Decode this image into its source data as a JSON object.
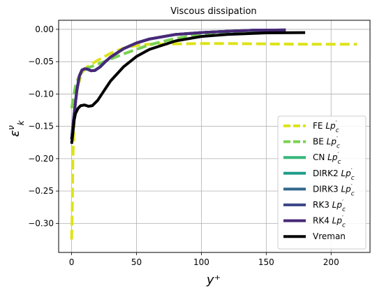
{
  "chart_data": {
    "type": "line",
    "title": "Viscous dissipation",
    "xlabel": "y⁺",
    "ylabel": "ε",
    "ylabel_sup": "ν",
    "ylabel_sub": "k",
    "xlim": [
      -10,
      230
    ],
    "ylim": [
      -0.345,
      0.014
    ],
    "x_ticks": [
      0,
      50,
      100,
      150,
      200
    ],
    "y_ticks": [
      0.0,
      -0.05,
      -0.1,
      -0.15,
      -0.2,
      -0.25,
      -0.3
    ],
    "x_tick_labels": [
      "0",
      "50",
      "100",
      "150",
      "200"
    ],
    "y_tick_labels": [
      "0.00",
      "−0.05",
      "−0.10",
      "−0.15",
      "−0.20",
      "−0.25",
      "−0.30"
    ],
    "grid": true,
    "legend_position": "lower-right",
    "series": [
      {
        "name": "FE Lp′c",
        "label_main": "FE ",
        "label_italic": "Lp",
        "label_prime": "′",
        "label_sub": "c",
        "color": "#dde318",
        "style": "dashed",
        "x": [
          0,
          0.5,
          1,
          2,
          3,
          5,
          8,
          12,
          20,
          30,
          40,
          50,
          60,
          80,
          100,
          120,
          150,
          180,
          220
        ],
        "y": [
          -0.325,
          -0.28,
          -0.2,
          -0.14,
          -0.11,
          -0.085,
          -0.067,
          -0.058,
          -0.048,
          -0.037,
          -0.029,
          -0.025,
          -0.023,
          -0.0225,
          -0.022,
          -0.022,
          -0.0225,
          -0.023,
          -0.023
        ]
      },
      {
        "name": "BE Lp′c",
        "label_main": "BE ",
        "label_italic": "Lp",
        "label_prime": "′",
        "label_sub": "c",
        "color": "#7ad151",
        "style": "dashed",
        "x": [
          0,
          1,
          2,
          3,
          5,
          8,
          12,
          16,
          20,
          30,
          40,
          50,
          60,
          80,
          100,
          120,
          140,
          160
        ],
        "y": [
          -0.122,
          -0.11,
          -0.098,
          -0.088,
          -0.076,
          -0.066,
          -0.06,
          -0.057,
          -0.054,
          -0.046,
          -0.038,
          -0.031,
          -0.024,
          -0.014,
          -0.008,
          -0.005,
          -0.003,
          -0.002
        ]
      },
      {
        "name": "CN Lp′c",
        "label_main": "CN ",
        "label_italic": "Lp",
        "label_prime": "′",
        "label_sub": "c",
        "color": "#35b779",
        "style": "solid",
        "x": [
          0,
          1,
          2,
          4,
          6,
          8,
          10,
          12,
          15,
          18,
          22,
          26,
          30,
          40,
          50,
          60,
          80,
          100,
          120,
          140,
          165
        ],
        "y": [
          -0.17,
          -0.15,
          -0.13,
          -0.095,
          -0.072,
          -0.063,
          -0.061,
          -0.0615,
          -0.064,
          -0.0635,
          -0.058,
          -0.05,
          -0.043,
          -0.03,
          -0.021,
          -0.015,
          -0.008,
          -0.005,
          -0.003,
          -0.0015,
          -0.001
        ]
      },
      {
        "name": "DIRK2 Lp′c",
        "label_main": "DIRK2 ",
        "label_italic": "Lp",
        "label_prime": "′",
        "label_sub": "c",
        "color": "#1f9e89",
        "style": "solid",
        "x": [
          0,
          1,
          2,
          4,
          6,
          8,
          10,
          12,
          15,
          18,
          22,
          26,
          30,
          40,
          50,
          60,
          80,
          100,
          120,
          140,
          165
        ],
        "y": [
          -0.17,
          -0.15,
          -0.13,
          -0.095,
          -0.072,
          -0.063,
          -0.061,
          -0.0615,
          -0.064,
          -0.0635,
          -0.058,
          -0.05,
          -0.043,
          -0.03,
          -0.021,
          -0.015,
          -0.008,
          -0.005,
          -0.003,
          -0.0015,
          -0.001
        ]
      },
      {
        "name": "DIRK3 Lp′c",
        "label_main": "DIRK3 ",
        "label_italic": "Lp",
        "label_prime": "′",
        "label_sub": "c",
        "color": "#31688e",
        "style": "solid",
        "x": [
          0,
          1,
          2,
          4,
          6,
          8,
          10,
          12,
          15,
          18,
          22,
          26,
          30,
          40,
          50,
          60,
          80,
          100,
          120,
          140,
          165
        ],
        "y": [
          -0.17,
          -0.15,
          -0.13,
          -0.095,
          -0.072,
          -0.063,
          -0.061,
          -0.0615,
          -0.064,
          -0.0635,
          -0.058,
          -0.05,
          -0.043,
          -0.03,
          -0.021,
          -0.015,
          -0.008,
          -0.005,
          -0.003,
          -0.0015,
          -0.001
        ]
      },
      {
        "name": "RK3 Lp′c",
        "label_main": "RK3 ",
        "label_italic": "Lp",
        "label_prime": "′",
        "label_sub": "c",
        "color": "#3e4989",
        "style": "solid",
        "x": [
          0,
          1,
          2,
          4,
          6,
          8,
          10,
          12,
          15,
          18,
          22,
          26,
          30,
          40,
          50,
          60,
          80,
          100,
          120,
          140,
          165
        ],
        "y": [
          -0.17,
          -0.15,
          -0.13,
          -0.095,
          -0.072,
          -0.063,
          -0.061,
          -0.0615,
          -0.064,
          -0.0635,
          -0.058,
          -0.05,
          -0.043,
          -0.03,
          -0.021,
          -0.015,
          -0.008,
          -0.005,
          -0.003,
          -0.0015,
          -0.001
        ]
      },
      {
        "name": "RK4 Lp′c",
        "label_main": "RK4 ",
        "label_italic": "Lp",
        "label_prime": "′",
        "label_sub": "c",
        "color": "#482878",
        "style": "solid",
        "x": [
          0,
          1,
          2,
          4,
          6,
          8,
          10,
          12,
          15,
          18,
          22,
          26,
          30,
          40,
          50,
          60,
          80,
          100,
          120,
          140,
          165
        ],
        "y": [
          -0.17,
          -0.15,
          -0.13,
          -0.095,
          -0.072,
          -0.063,
          -0.061,
          -0.0615,
          -0.064,
          -0.0635,
          -0.058,
          -0.05,
          -0.043,
          -0.03,
          -0.021,
          -0.015,
          -0.008,
          -0.005,
          -0.003,
          -0.0015,
          -0.001
        ]
      },
      {
        "name": "Vreman",
        "label_main": "Vreman",
        "label_italic": "",
        "label_prime": "",
        "label_sub": "",
        "color": "#000000",
        "style": "solid",
        "x": [
          0,
          1,
          2,
          3,
          5,
          7,
          10,
          13,
          16,
          20,
          25,
          30,
          40,
          50,
          60,
          80,
          100,
          120,
          150,
          180
        ],
        "y": [
          -0.177,
          -0.16,
          -0.14,
          -0.13,
          -0.122,
          -0.118,
          -0.117,
          -0.119,
          -0.118,
          -0.11,
          -0.095,
          -0.08,
          -0.058,
          -0.042,
          -0.031,
          -0.018,
          -0.011,
          -0.008,
          -0.0055,
          -0.005
        ]
      }
    ]
  }
}
